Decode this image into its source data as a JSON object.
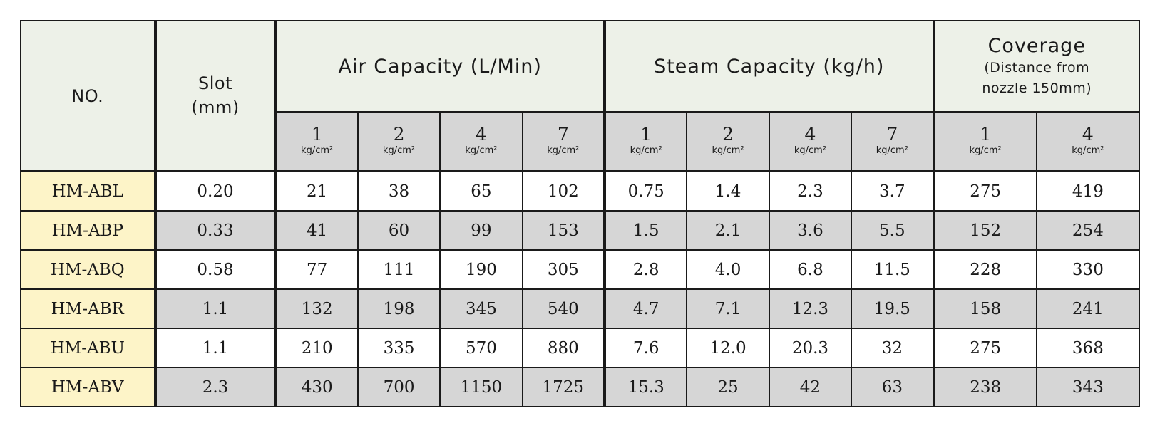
{
  "header": {
    "no": "NO.",
    "slot_line1": "Slot",
    "slot_line2": "(mm)",
    "air": "Air Capacity (L/Min)",
    "steam": "Steam Capacity (kg/h)",
    "coverage_line1": "Coverage",
    "coverage_line2": "(Distance from",
    "coverage_line3": "nozzle 150mm)",
    "unit": "kg/cm²",
    "air_pressures": [
      "1",
      "2",
      "4",
      "7"
    ],
    "steam_pressures": [
      "1",
      "2",
      "4",
      "7"
    ],
    "coverage_pressures": [
      "1",
      "4"
    ]
  },
  "rows": [
    {
      "no": "HM-ABL",
      "slot": "0.20",
      "air": [
        "21",
        "38",
        "65",
        "102"
      ],
      "steam": [
        "0.75",
        "1.4",
        "2.3",
        "3.7"
      ],
      "coverage": [
        "275",
        "419"
      ]
    },
    {
      "no": "HM-ABP",
      "slot": "0.33",
      "air": [
        "41",
        "60",
        "99",
        "153"
      ],
      "steam": [
        "1.5",
        "2.1",
        "3.6",
        "5.5"
      ],
      "coverage": [
        "152",
        "254"
      ]
    },
    {
      "no": "HM-ABQ",
      "slot": "0.58",
      "air": [
        "77",
        "111",
        "190",
        "305"
      ],
      "steam": [
        "2.8",
        "4.0",
        "6.8",
        "11.5"
      ],
      "coverage": [
        "228",
        "330"
      ]
    },
    {
      "no": "HM-ABR",
      "slot": "1.1",
      "air": [
        "132",
        "198",
        "345",
        "540"
      ],
      "steam": [
        "4.7",
        "7.1",
        "12.3",
        "19.5"
      ],
      "coverage": [
        "158",
        "241"
      ]
    },
    {
      "no": "HM-ABU",
      "slot": "1.1",
      "air": [
        "210",
        "335",
        "570",
        "880"
      ],
      "steam": [
        "7.6",
        "12.0",
        "20.3",
        "32"
      ],
      "coverage": [
        "275",
        "368"
      ]
    },
    {
      "no": "HM-ABV",
      "slot": "2.3",
      "air": [
        "430",
        "700",
        "1150",
        "1725"
      ],
      "steam": [
        "15.3",
        "25",
        "42",
        "63"
      ],
      "coverage": [
        "238",
        "343"
      ]
    }
  ]
}
